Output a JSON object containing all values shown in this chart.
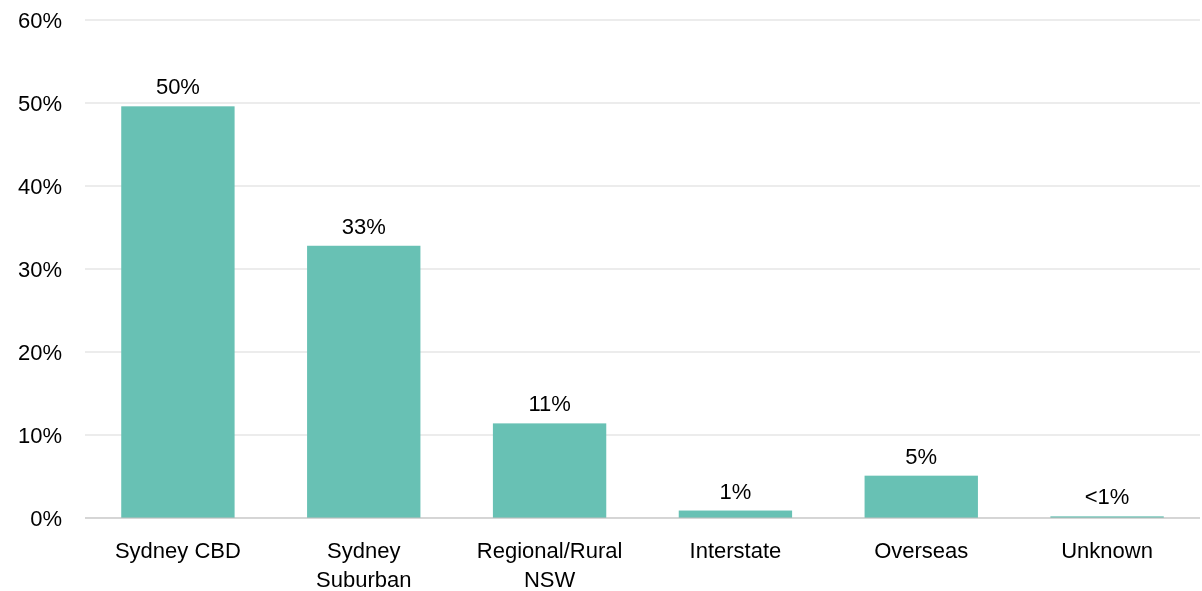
{
  "chart_data": {
    "type": "bar",
    "categories": [
      "Sydney CBD",
      "Sydney Suburban",
      "Regional/Rural NSW",
      "Interstate",
      "Overseas",
      "Unknown"
    ],
    "values": [
      49.6,
      32.8,
      11.4,
      0.9,
      5.1,
      0.2
    ],
    "value_labels": [
      "50%",
      "33%",
      "11%",
      "1%",
      "5%",
      "<1%"
    ],
    "color": "#68c1b4",
    "ylim": [
      0,
      60
    ],
    "yticks": [
      {
        "value": 0,
        "label": "0%"
      },
      {
        "value": 10,
        "label": "10%"
      },
      {
        "value": 20,
        "label": "20%"
      },
      {
        "value": 30,
        "label": "30%"
      },
      {
        "value": 40,
        "label": "40%"
      },
      {
        "value": 50,
        "label": "50%"
      },
      {
        "value": 60,
        "label": "60%"
      }
    ],
    "grid": "y"
  }
}
